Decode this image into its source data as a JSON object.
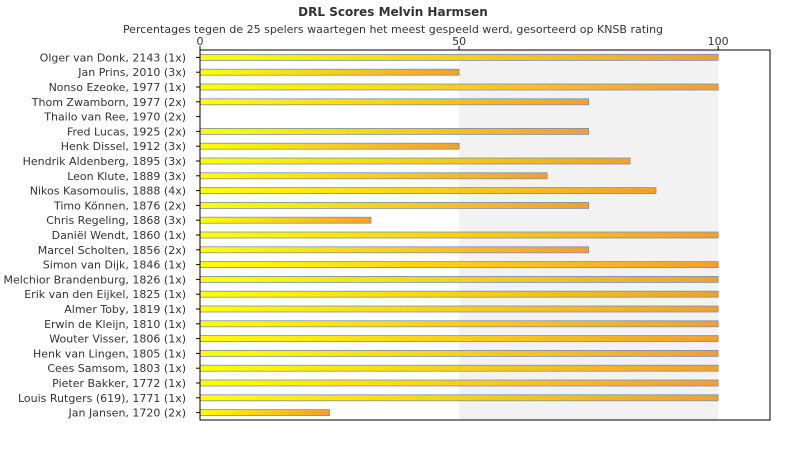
{
  "chart_data": {
    "type": "bar",
    "orientation": "horizontal",
    "title": "DRL Scores Melvin Harmsen",
    "subtitle": "Percentages tegen de 25 spelers waartegen het meest gespeeld werd, gesorteerd op KNSB rating",
    "xlabel": "",
    "ylabel": "",
    "xlim": [
      0,
      110
    ],
    "x_ticks": [
      0,
      50,
      100
    ],
    "x_tick_labels": [
      "0",
      "50",
      "100"
    ],
    "shaded_band": [
      50,
      100
    ],
    "grid": false,
    "legend": "none",
    "colors": {
      "bar_light": "#ffff00",
      "bar_dark": "#f0a030",
      "bar_edge": "#7f8db0",
      "band": "#f2f2f2",
      "axis": "#000000",
      "text": "#333333"
    },
    "categories": [
      "Olger van Donk, 2143 (1x)",
      "Jan Prins, 2010 (3x)",
      "Nonso Ezeoke, 1977 (1x)",
      "Thom Zwamborn, 1977 (2x)",
      "Thailo van Ree, 1970 (2x)",
      "Fred Lucas, 1925 (2x)",
      "Henk Dissel, 1912 (3x)",
      "Hendrik Aldenberg, 1895 (3x)",
      "Leon Klute, 1889 (3x)",
      "Nikos Kasomoulis, 1888 (4x)",
      "Timo Können, 1876 (2x)",
      "Chris Regeling, 1868 (3x)",
      "Daniël Wendt, 1860 (1x)",
      "Marcel Scholten, 1856 (2x)",
      "Simon van Dijk, 1846 (1x)",
      "Melchior Brandenburg, 1826 (1x)",
      "Erik van den Eijkel, 1825 (1x)",
      "Almer Toby, 1819 (1x)",
      "Erwin de Kleijn, 1810 (1x)",
      "Wouter Visser, 1806 (1x)",
      "Henk van Lingen, 1805 (1x)",
      "Cees Samsom, 1803 (1x)",
      "Pieter Bakker, 1772 (1x)",
      "Louis Rutgers (619), 1771 (1x)",
      "Jan Jansen, 1720 (2x)"
    ],
    "values": [
      100,
      50,
      100,
      75,
      0,
      75,
      50,
      83,
      67,
      88,
      75,
      33,
      100,
      75,
      100,
      100,
      100,
      100,
      100,
      100,
      100,
      100,
      100,
      100,
      25
    ]
  }
}
